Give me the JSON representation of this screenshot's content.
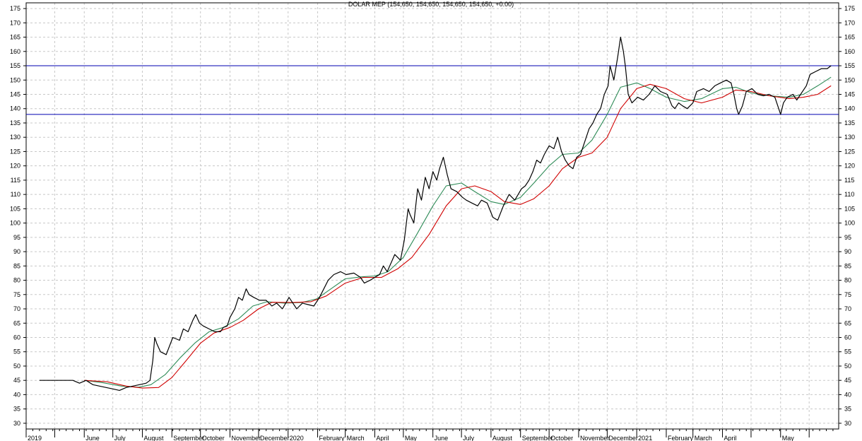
{
  "chart_data": {
    "type": "line",
    "title": "DOLAR MEP (154,650, 154,650, 154,650, 154,650, +0.00)",
    "ylim": [
      28,
      177
    ],
    "y_ticks": [
      30,
      35,
      40,
      45,
      50,
      55,
      60,
      65,
      70,
      75,
      80,
      85,
      90,
      95,
      100,
      105,
      110,
      115,
      120,
      125,
      130,
      135,
      140,
      145,
      150,
      155,
      160,
      165,
      170,
      175
    ],
    "x_months": [
      "2019",
      "June",
      "July",
      "August",
      "September",
      "October",
      "November",
      "December",
      "2020",
      "February",
      "March",
      "April",
      "May",
      "June",
      "July",
      "August",
      "September",
      "October",
      "November",
      "December",
      "2021",
      "February",
      "March",
      "April",
      "May"
    ],
    "grid": true,
    "horizontal_lines": [
      {
        "value": 155,
        "color": "#0000b0"
      },
      {
        "value": 138,
        "color": "#0000b0"
      }
    ],
    "series": [
      {
        "color": "#000000",
        "points": [
          [
            "2019-04-15",
            45
          ],
          [
            "2019-05-20",
            45
          ],
          [
            "2019-05-27",
            44
          ],
          [
            "2019-06-03",
            45
          ],
          [
            "2019-06-10",
            43.5
          ],
          [
            "2019-06-17",
            43
          ],
          [
            "2019-06-24",
            42.5
          ],
          [
            "2019-07-01",
            42
          ],
          [
            "2019-07-08",
            41.5
          ],
          [
            "2019-07-15",
            42.5
          ],
          [
            "2019-07-22",
            43
          ],
          [
            "2019-07-29",
            43.5
          ],
          [
            "2019-08-05",
            44
          ],
          [
            "2019-08-09",
            45
          ],
          [
            "2019-08-12",
            52
          ],
          [
            "2019-08-14",
            60
          ],
          [
            "2019-08-16",
            58
          ],
          [
            "2019-08-20",
            55
          ],
          [
            "2019-08-26",
            54
          ],
          [
            "2019-09-02",
            60
          ],
          [
            "2019-09-09",
            59
          ],
          [
            "2019-09-13",
            63
          ],
          [
            "2019-09-18",
            62
          ],
          [
            "2019-09-23",
            66
          ],
          [
            "2019-09-26",
            68
          ],
          [
            "2019-09-30",
            65
          ],
          [
            "2019-10-04",
            64
          ],
          [
            "2019-10-10",
            63
          ],
          [
            "2019-10-16",
            62
          ],
          [
            "2019-10-22",
            62
          ],
          [
            "2019-10-25",
            63.5
          ],
          [
            "2019-10-29",
            64
          ],
          [
            "2019-11-01",
            67
          ],
          [
            "2019-11-06",
            70
          ],
          [
            "2019-11-10",
            74
          ],
          [
            "2019-11-14",
            73
          ],
          [
            "2019-11-18",
            77
          ],
          [
            "2019-11-21",
            75
          ],
          [
            "2019-11-26",
            74
          ],
          [
            "2019-12-02",
            73
          ],
          [
            "2019-12-09",
            73
          ],
          [
            "2019-12-15",
            71
          ],
          [
            "2019-12-20",
            72
          ],
          [
            "2019-12-26",
            70
          ],
          [
            "2020-01-02",
            74
          ],
          [
            "2020-01-06",
            72
          ],
          [
            "2020-01-10",
            70
          ],
          [
            "2020-01-16",
            72
          ],
          [
            "2020-01-22",
            71.5
          ],
          [
            "2020-01-28",
            71
          ],
          [
            "2020-02-03",
            74
          ],
          [
            "2020-02-06",
            76
          ],
          [
            "2020-02-12",
            80
          ],
          [
            "2020-02-18",
            82
          ],
          [
            "2020-02-25",
            83
          ],
          [
            "2020-03-02",
            82
          ],
          [
            "2020-03-10",
            82.5
          ],
          [
            "2020-03-17",
            81
          ],
          [
            "2020-03-21",
            79
          ],
          [
            "2020-03-27",
            80
          ],
          [
            "2020-04-01",
            81
          ],
          [
            "2020-04-06",
            82
          ],
          [
            "2020-04-10",
            85
          ],
          [
            "2020-04-14",
            83
          ],
          [
            "2020-04-18",
            86
          ],
          [
            "2020-04-22",
            89
          ],
          [
            "2020-04-28",
            87
          ],
          [
            "2020-05-02",
            94
          ],
          [
            "2020-05-06",
            105
          ],
          [
            "2020-05-08",
            103
          ],
          [
            "2020-05-12",
            100
          ],
          [
            "2020-05-16",
            112
          ],
          [
            "2020-05-20",
            108
          ],
          [
            "2020-05-24",
            116
          ],
          [
            "2020-05-28",
            112
          ],
          [
            "2020-06-01",
            118
          ],
          [
            "2020-06-05",
            115
          ],
          [
            "2020-06-08",
            119
          ],
          [
            "2020-06-12",
            123
          ],
          [
            "2020-06-16",
            117
          ],
          [
            "2020-06-20",
            112
          ],
          [
            "2020-06-26",
            111
          ],
          [
            "2020-07-02",
            109
          ],
          [
            "2020-07-06",
            108
          ],
          [
            "2020-07-12",
            107
          ],
          [
            "2020-07-18",
            106
          ],
          [
            "2020-07-22",
            108
          ],
          [
            "2020-07-28",
            107
          ],
          [
            "2020-08-03",
            102
          ],
          [
            "2020-08-08",
            101
          ],
          [
            "2020-08-14",
            106
          ],
          [
            "2020-08-20",
            110
          ],
          [
            "2020-08-26",
            108
          ],
          [
            "2020-09-02",
            112
          ],
          [
            "2020-09-06",
            113
          ],
          [
            "2020-09-10",
            115
          ],
          [
            "2020-09-14",
            118
          ],
          [
            "2020-09-18",
            122
          ],
          [
            "2020-09-22",
            121
          ],
          [
            "2020-09-26",
            124
          ],
          [
            "2020-10-01",
            127
          ],
          [
            "2020-10-06",
            126
          ],
          [
            "2020-10-10",
            130
          ],
          [
            "2020-10-14",
            125
          ],
          [
            "2020-10-18",
            122
          ],
          [
            "2020-10-22",
            120
          ],
          [
            "2020-10-26",
            119
          ],
          [
            "2020-10-30",
            123
          ],
          [
            "2020-11-03",
            124
          ],
          [
            "2020-11-07",
            128
          ],
          [
            "2020-11-12",
            133
          ],
          [
            "2020-11-16",
            135
          ],
          [
            "2020-11-20",
            138
          ],
          [
            "2020-11-24",
            140
          ],
          [
            "2020-11-28",
            145
          ],
          [
            "2020-12-02",
            148
          ],
          [
            "2020-12-04",
            155
          ],
          [
            "2020-12-08",
            150
          ],
          [
            "2020-12-12",
            158
          ],
          [
            "2020-12-15",
            165
          ],
          [
            "2020-12-18",
            160
          ],
          [
            "2020-12-20",
            155
          ],
          [
            "2020-12-23",
            145
          ],
          [
            "2020-12-27",
            142
          ],
          [
            "2021-01-02",
            144
          ],
          [
            "2021-01-08",
            143
          ],
          [
            "2021-01-14",
            145
          ],
          [
            "2021-01-20",
            148
          ],
          [
            "2021-01-26",
            146
          ],
          [
            "2021-02-02",
            145
          ],
          [
            "2021-02-07",
            141
          ],
          [
            "2021-02-10",
            140
          ],
          [
            "2021-02-14",
            142
          ],
          [
            "2021-02-18",
            141
          ],
          [
            "2021-02-23",
            140
          ],
          [
            "2021-03-01",
            142
          ],
          [
            "2021-03-05",
            146
          ],
          [
            "2021-03-12",
            147
          ],
          [
            "2021-03-18",
            146
          ],
          [
            "2021-03-24",
            148
          ],
          [
            "2021-03-30",
            149
          ],
          [
            "2021-04-05",
            150
          ],
          [
            "2021-04-10",
            149
          ],
          [
            "2021-04-13",
            145
          ],
          [
            "2021-04-16",
            140
          ],
          [
            "2021-04-18",
            138
          ],
          [
            "2021-04-22",
            141
          ],
          [
            "2021-04-26",
            146
          ],
          [
            "2021-05-02",
            147
          ],
          [
            "2021-05-08",
            145
          ],
          [
            "2021-05-14",
            144.5
          ],
          [
            "2021-05-20",
            145
          ],
          [
            "2021-05-26",
            144
          ],
          [
            "2021-05-30",
            140
          ],
          [
            "2021-06-01",
            138
          ],
          [
            "2021-06-04",
            142
          ],
          [
            "2021-06-08",
            144
          ],
          [
            "2021-06-14",
            145
          ],
          [
            "2021-06-18",
            143
          ],
          [
            "2021-06-22",
            145
          ],
          [
            "2021-06-28",
            148
          ],
          [
            "2021-07-02",
            152
          ],
          [
            "2021-07-08",
            153
          ],
          [
            "2021-07-14",
            154
          ],
          [
            "2021-07-20",
            154
          ],
          [
            "2021-07-24",
            155
          ]
        ]
      },
      {
        "color": "#2e8b57",
        "points": [
          [
            "2019-06-01",
            45
          ],
          [
            "2019-06-20",
            44.2
          ],
          [
            "2019-07-10",
            43
          ],
          [
            "2019-07-28",
            42.6
          ],
          [
            "2019-08-10",
            43.5
          ],
          [
            "2019-08-25",
            47
          ],
          [
            "2019-09-10",
            53
          ],
          [
            "2019-09-25",
            58
          ],
          [
            "2019-10-10",
            62
          ],
          [
            "2019-10-25",
            63.5
          ],
          [
            "2019-11-10",
            66.5
          ],
          [
            "2019-11-25",
            71
          ],
          [
            "2019-12-10",
            72.5
          ],
          [
            "2019-12-28",
            72
          ],
          [
            "2020-01-15",
            72.2
          ],
          [
            "2020-01-31",
            73.5
          ],
          [
            "2020-02-15",
            77
          ],
          [
            "2020-03-01",
            80.5
          ],
          [
            "2020-03-18",
            81.2
          ],
          [
            "2020-04-01",
            81.5
          ],
          [
            "2020-04-15",
            83
          ],
          [
            "2020-05-01",
            88
          ],
          [
            "2020-05-15",
            96
          ],
          [
            "2020-06-01",
            106
          ],
          [
            "2020-06-15",
            113
          ],
          [
            "2020-07-01",
            114
          ],
          [
            "2020-07-15",
            111
          ],
          [
            "2020-08-01",
            107.5
          ],
          [
            "2020-08-15",
            106.5
          ],
          [
            "2020-09-01",
            109
          ],
          [
            "2020-09-15",
            114
          ],
          [
            "2020-10-01",
            120
          ],
          [
            "2020-10-15",
            124
          ],
          [
            "2020-11-01",
            124.5
          ],
          [
            "2020-11-15",
            129
          ],
          [
            "2020-12-01",
            138
          ],
          [
            "2020-12-15",
            147.5
          ],
          [
            "2021-01-01",
            149
          ],
          [
            "2021-01-15",
            147
          ],
          [
            "2021-02-01",
            144
          ],
          [
            "2021-02-20",
            142.5
          ],
          [
            "2021-03-10",
            143.5
          ],
          [
            "2021-04-01",
            147
          ],
          [
            "2021-04-15",
            147.5
          ],
          [
            "2021-05-01",
            145.5
          ],
          [
            "2021-05-20",
            144.5
          ],
          [
            "2021-06-10",
            144
          ],
          [
            "2021-06-25",
            145
          ],
          [
            "2021-07-10",
            148
          ],
          [
            "2021-07-24",
            151
          ]
        ]
      },
      {
        "color": "#d00000",
        "points": [
          [
            "2019-06-01",
            45
          ],
          [
            "2019-06-25",
            44.5
          ],
          [
            "2019-07-15",
            43
          ],
          [
            "2019-08-01",
            42.3
          ],
          [
            "2019-08-18",
            42.5
          ],
          [
            "2019-09-01",
            46
          ],
          [
            "2019-09-15",
            51.5
          ],
          [
            "2019-10-01",
            58
          ],
          [
            "2019-10-15",
            61.5
          ],
          [
            "2019-11-01",
            63.5
          ],
          [
            "2019-11-15",
            66
          ],
          [
            "2019-12-01",
            70
          ],
          [
            "2019-12-15",
            72.3
          ],
          [
            "2020-01-05",
            72.2
          ],
          [
            "2020-01-25",
            72.5
          ],
          [
            "2020-02-10",
            74.5
          ],
          [
            "2020-03-01",
            79
          ],
          [
            "2020-03-20",
            81
          ],
          [
            "2020-04-08",
            81
          ],
          [
            "2020-04-25",
            84
          ],
          [
            "2020-05-10",
            88
          ],
          [
            "2020-05-28",
            96
          ],
          [
            "2020-06-15",
            106
          ],
          [
            "2020-07-01",
            112
          ],
          [
            "2020-07-15",
            113
          ],
          [
            "2020-08-01",
            111
          ],
          [
            "2020-08-15",
            107.5
          ],
          [
            "2020-09-01",
            106.5
          ],
          [
            "2020-09-15",
            108.5
          ],
          [
            "2020-10-01",
            113
          ],
          [
            "2020-10-15",
            119
          ],
          [
            "2020-11-01",
            123
          ],
          [
            "2020-11-15",
            124.5
          ],
          [
            "2020-12-01",
            130
          ],
          [
            "2020-12-15",
            140
          ],
          [
            "2021-01-01",
            147
          ],
          [
            "2021-01-15",
            148.5
          ],
          [
            "2021-02-01",
            147
          ],
          [
            "2021-02-20",
            143.5
          ],
          [
            "2021-03-10",
            142
          ],
          [
            "2021-04-01",
            144
          ],
          [
            "2021-04-15",
            146.5
          ],
          [
            "2021-05-01",
            146
          ],
          [
            "2021-05-20",
            144.5
          ],
          [
            "2021-06-10",
            143.5
          ],
          [
            "2021-06-25",
            144
          ],
          [
            "2021-07-10",
            145
          ],
          [
            "2021-07-24",
            148
          ]
        ]
      }
    ]
  }
}
